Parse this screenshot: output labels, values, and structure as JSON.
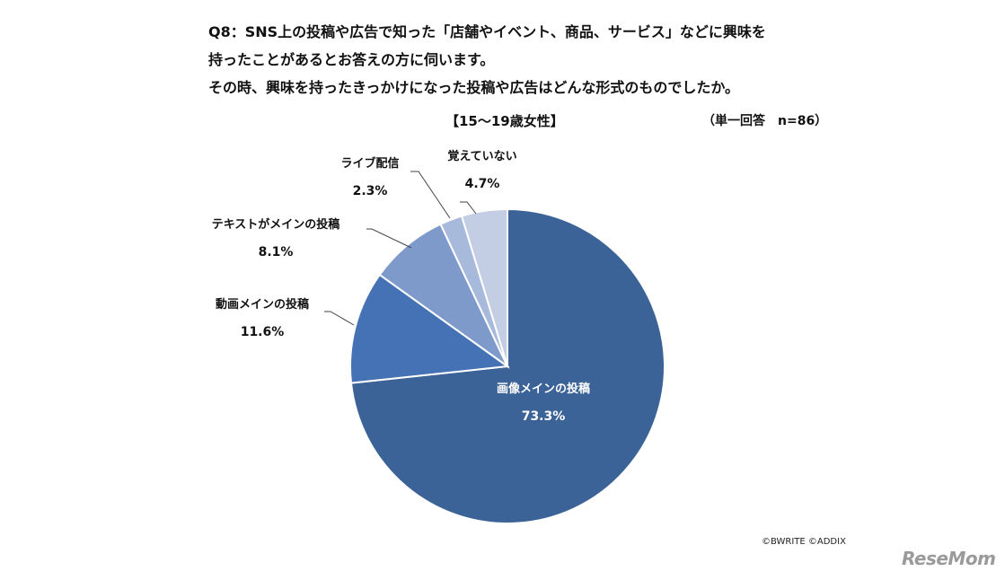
{
  "question": {
    "lines": [
      "Q8：SNS上の投稿や広告で知った「店舗やイベント、商品、サービス」などに興味を",
      "持ったことがあるとお答えの方に伺います。",
      "その時、興味を持ったきっかけになった投稿や広告はどんな形式のものでしたか。"
    ]
  },
  "chart_data": {
    "type": "pie",
    "title": "【15～19歳女性】",
    "sample_note": "（単一回答　n=86）",
    "start_angle_deg": 0,
    "direction": "clockwise",
    "legend": "none (labels beside slices)",
    "slices": [
      {
        "label": "画像メインの投稿",
        "value": 73.3,
        "value_label": "73.3%",
        "color": "#3b6398"
      },
      {
        "label": "動画メインの投稿",
        "value": 11.6,
        "value_label": "11.6%",
        "color": "#4572b4"
      },
      {
        "label": "テキストがメインの投稿",
        "value": 8.1,
        "value_label": "8.1%",
        "color": "#7d9acb"
      },
      {
        "label": "ライブ配信",
        "value": 2.3,
        "value_label": "2.3%",
        "color": "#a8badb"
      },
      {
        "label": "覚えていない",
        "value": 4.7,
        "value_label": "4.7%",
        "color": "#c3cde4"
      }
    ]
  },
  "footer": {
    "credit": "©BWRITE ©ADDIX",
    "logo_text": "ReseMom"
  }
}
